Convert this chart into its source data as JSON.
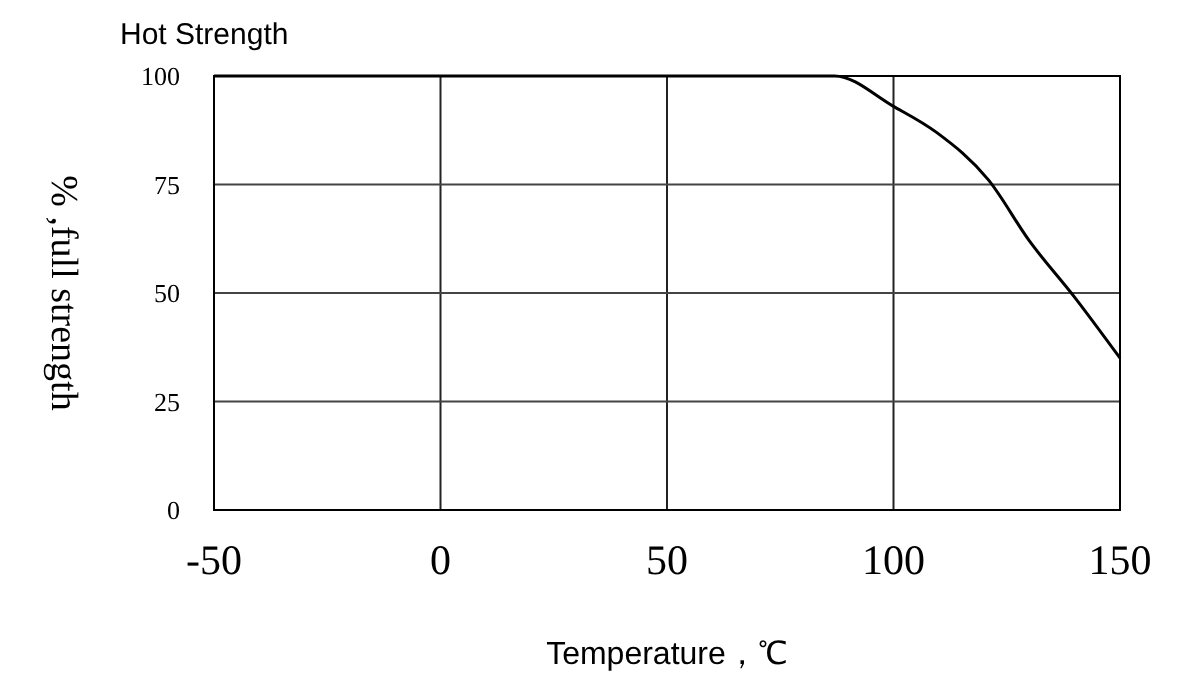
{
  "chart_data": {
    "type": "line",
    "title": "Hot Strength",
    "xlabel": "Temperature，℃",
    "ylabel": "% ,full strength",
    "x": [
      -50,
      87,
      100,
      109.5,
      121,
      130,
      140,
      150
    ],
    "series": [
      {
        "color": "#000000",
        "values": [
          100,
          100,
          93,
          87,
          76,
          62,
          49,
          35
        ]
      }
    ],
    "xlim": [
      -50,
      150
    ],
    "xticks": [
      -50,
      0,
      50,
      100,
      150
    ],
    "ylim": [
      0,
      100
    ],
    "yticks": [
      0,
      25,
      50,
      75,
      100
    ],
    "grid": true,
    "marker": "none",
    "line_style": "solid"
  }
}
